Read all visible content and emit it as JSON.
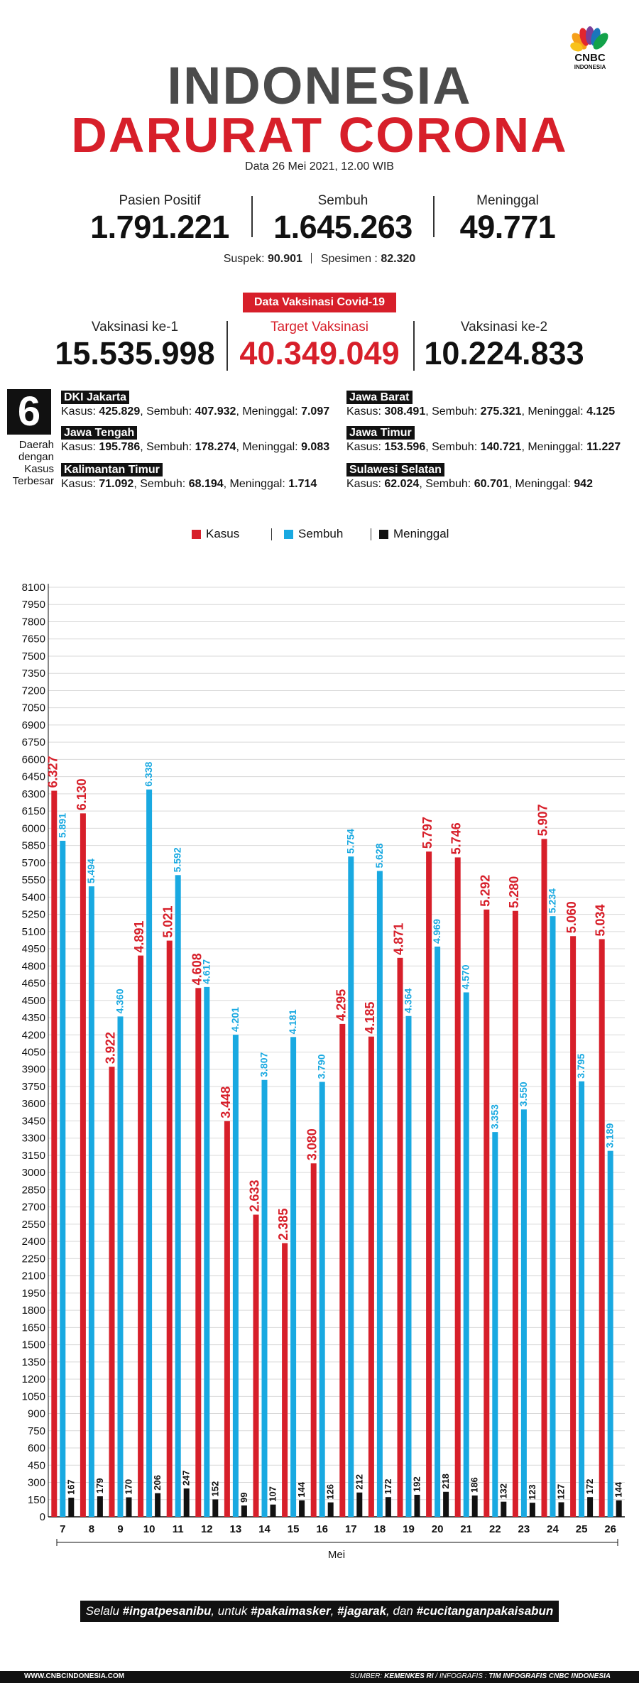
{
  "brand": {
    "logo_text": "CNBC",
    "logo_sub": "INDONESIA"
  },
  "header": {
    "title_line1": "INDONESIA",
    "title_line2": "DARURAT CORONA",
    "date": "Data 26 Mei 2021, 12.00 WIB"
  },
  "stats": [
    {
      "label": "Pasien Positif",
      "value": "1.791.221"
    },
    {
      "label": "Sembuh",
      "value": "1.645.263"
    },
    {
      "label": "Meninggal",
      "value": "49.771"
    }
  ],
  "sub_stats": {
    "suspek_label": "Suspek:",
    "suspek_value": "90.901",
    "spesimen_label": "Spesimen :",
    "spesimen_value": "82.320"
  },
  "vaccination": {
    "badge": "Data Vaksinasi Covid-19",
    "items": [
      {
        "label": "Vaksinasi ke-1",
        "value": "15.535.998"
      },
      {
        "label": "Target Vaksinasi",
        "value": "40.349.049"
      },
      {
        "label": "Vaksinasi ke-2",
        "value": "10.224.833"
      }
    ]
  },
  "regions": {
    "count": "6",
    "caption": [
      "Daerah",
      "dengan",
      "Kasus",
      "Terbesar"
    ],
    "kasus_label": "Kasus:",
    "sembuh_label": "Sembuh:",
    "meninggal_label": "Meninggal:",
    "items": [
      {
        "name": "DKI Jakarta",
        "kasus": "425.829",
        "sembuh": "407.932",
        "meninggal": "7.097"
      },
      {
        "name": "Jawa Barat",
        "kasus": "308.491",
        "sembuh": "275.321",
        "meninggal": "4.125"
      },
      {
        "name": "Jawa Tengah",
        "kasus": "195.786",
        "sembuh": "178.274",
        "meninggal": "9.083"
      },
      {
        "name": "Jawa Timur",
        "kasus": "153.596",
        "sembuh": "140.721",
        "meninggal": "11.227"
      },
      {
        "name": "Kalimantan Timur",
        "kasus": "71.092",
        "sembuh": "68.194",
        "meninggal": "1.714"
      },
      {
        "name": "Sulawesi Selatan",
        "kasus": "62.024",
        "sembuh": "60.701",
        "meninggal": "942"
      }
    ]
  },
  "colors": {
    "kasus": "#d71f2a",
    "sembuh": "#19a9e1",
    "meninggal": "#111111"
  },
  "chart_data": {
    "type": "bar",
    "xlabel": "Mei",
    "ylabel": "",
    "ylim": [
      0,
      8100
    ],
    "ytick_step": 150,
    "grid": true,
    "legend": "top-center",
    "categories": [
      "7",
      "8",
      "9",
      "10",
      "11",
      "12",
      "13",
      "14",
      "15",
      "16",
      "17",
      "18",
      "19",
      "20",
      "21",
      "22",
      "23",
      "24",
      "25",
      "26"
    ],
    "series": [
      {
        "name": "Kasus",
        "values": [
          6327,
          6130,
          3922,
          4891,
          5021,
          4608,
          3448,
          2633,
          2385,
          3080,
          4295,
          4185,
          4871,
          5797,
          5746,
          5292,
          5280,
          5907,
          5060,
          5034
        ],
        "labels": [
          "6.327",
          "6.130",
          "3.922",
          "4.891",
          "5.021",
          "4.608",
          "3.448",
          "2.633",
          "2.385",
          "3.080",
          "4.295",
          "4.185",
          "4.871",
          "5.797",
          "5.746",
          "5.292",
          "5.280",
          "5.907",
          "5.060",
          "5.034"
        ]
      },
      {
        "name": "Sembuh",
        "values": [
          5891,
          5494,
          4360,
          6338,
          5592,
          4617,
          4201,
          3807,
          4181,
          3790,
          5754,
          5628,
          4364,
          4969,
          4570,
          3353,
          3550,
          5234,
          3795,
          3189
        ],
        "labels": [
          "5.891",
          "5.494",
          "4.360",
          "6.338",
          "5.592",
          "4.617",
          "4.201",
          "3.807",
          "4.181",
          "3.790",
          "5.754",
          "5.628",
          "4.364",
          "4.969",
          "4.570",
          "3.353",
          "3.550",
          "5.234",
          "3.795",
          "3.189"
        ]
      },
      {
        "name": "Meninggal",
        "values": [
          167,
          179,
          170,
          206,
          247,
          152,
          99,
          107,
          144,
          126,
          212,
          172,
          192,
          218,
          186,
          132,
          123,
          127,
          172,
          144
        ],
        "labels": [
          "167",
          "179",
          "170",
          "206",
          "247",
          "152",
          "99",
          "107",
          "144",
          "126",
          "212",
          "172",
          "192",
          "218",
          "186",
          "132",
          "123",
          "127",
          "172",
          "144"
        ]
      }
    ]
  },
  "slogan": {
    "p1": "Selalu ",
    "h1": "#ingatpesanibu",
    "p2": ", untuk ",
    "h2": "#pakaimasker",
    "p3": ", ",
    "h3": "#jagarak",
    "p4": ", dan ",
    "h4": "#cucitanganpakaisabun"
  },
  "footer": {
    "left": "WWW.CNBCINDONESIA.COM",
    "source_label": "SUMBER: ",
    "source_value": "KEMENKES RI",
    "infografis_label": " / INFOGRAFIS : ",
    "infografis_value": "TIM INFOGRAFIS CNBC INDONESIA"
  }
}
